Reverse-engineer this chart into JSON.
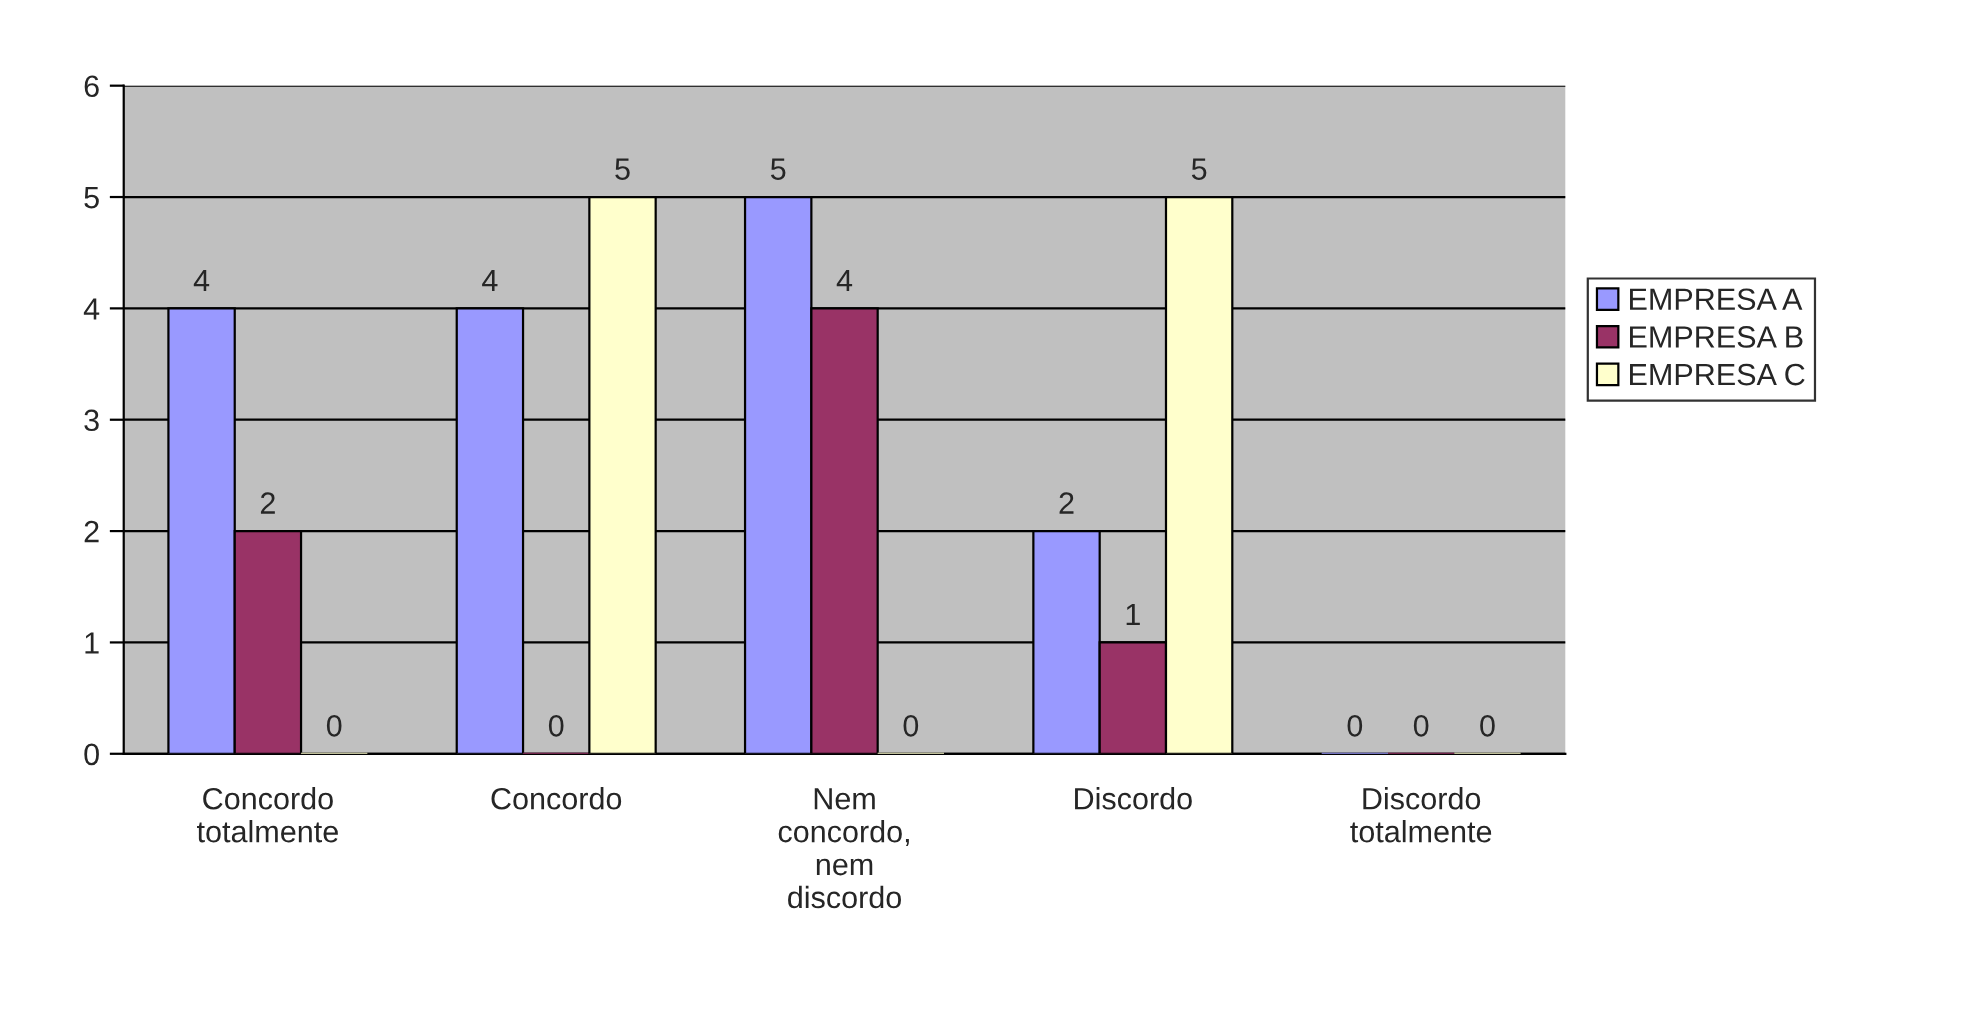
{
  "chart_data": {
    "type": "bar",
    "categories": [
      "Concordo\ntotalmente",
      "Concordo",
      "Nem\nconcordo,\nnem\ndiscordo",
      "Discordo",
      "Discordo\ntotalmente"
    ],
    "series": [
      {
        "name": "EMPRESA A",
        "color": "#9999ff",
        "values": [
          4,
          4,
          5,
          2,
          0
        ]
      },
      {
        "name": "EMPRESA B",
        "color": "#993366",
        "values": [
          2,
          0,
          4,
          1,
          0
        ]
      },
      {
        "name": "EMPRESA C",
        "color": "#ffffcc",
        "values": [
          0,
          5,
          0,
          5,
          0
        ]
      }
    ],
    "ylim": [
      0,
      6
    ],
    "yticks": [
      0,
      1,
      2,
      3,
      4,
      5,
      6
    ],
    "grid": "y",
    "legend": "right",
    "data_labels": true
  }
}
